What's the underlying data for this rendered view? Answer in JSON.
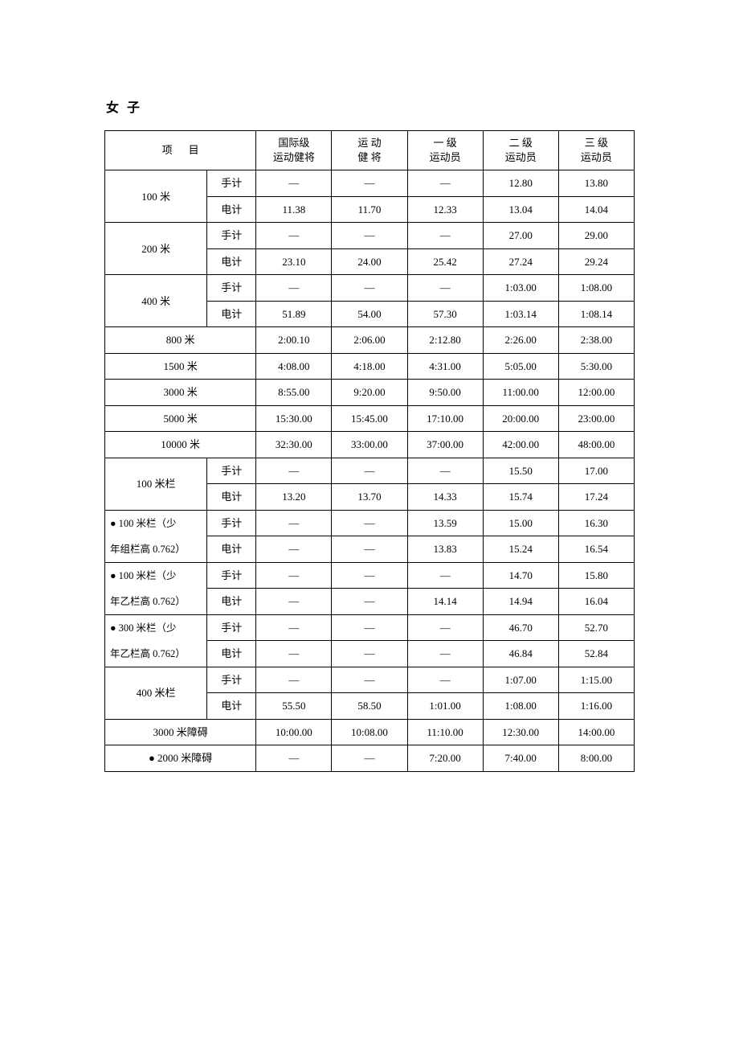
{
  "title": "女子",
  "headers": {
    "event": "项目",
    "col1_line1": "国际级",
    "col1_line2": "运动健将",
    "col2_line1": "运 动",
    "col2_line2": "健 将",
    "col3_line1": "一 级",
    "col3_line2": "运动员",
    "col4_line1": "二 级",
    "col4_line2": "运动员",
    "col5_line1": "三 级",
    "col5_line2": "运动员"
  },
  "timing": {
    "hand": "手计",
    "elec": "电计"
  },
  "events": {
    "e100m": {
      "name": "100 米",
      "hand": [
        "—",
        "—",
        "—",
        "12.80",
        "13.80"
      ],
      "elec": [
        "11.38",
        "11.70",
        "12.33",
        "13.04",
        "14.04"
      ]
    },
    "e200m": {
      "name": "200 米",
      "hand": [
        "—",
        "—",
        "—",
        "27.00",
        "29.00"
      ],
      "elec": [
        "23.10",
        "24.00",
        "25.42",
        "27.24",
        "29.24"
      ]
    },
    "e400m": {
      "name": "400 米",
      "hand": [
        "—",
        "—",
        "—",
        "1:03.00",
        "1:08.00"
      ],
      "elec": [
        "51.89",
        "54.00",
        "57.30",
        "1:03.14",
        "1:08.14"
      ]
    },
    "e800m": {
      "name": "800 米",
      "vals": [
        "2:00.10",
        "2:06.00",
        "2:12.80",
        "2:26.00",
        "2:38.00"
      ]
    },
    "e1500m": {
      "name": "1500 米",
      "vals": [
        "4:08.00",
        "4:18.00",
        "4:31.00",
        "5:05.00",
        "5:30.00"
      ]
    },
    "e3000m": {
      "name": "3000 米",
      "vals": [
        "8:55.00",
        "9:20.00",
        "9:50.00",
        "11:00.00",
        "12:00.00"
      ]
    },
    "e5000m": {
      "name": "5000 米",
      "vals": [
        "15:30.00",
        "15:45.00",
        "17:10.00",
        "20:00.00",
        "23:00.00"
      ]
    },
    "e10000m": {
      "name": "10000 米",
      "vals": [
        "32:30.00",
        "33:00.00",
        "37:00.00",
        "42:00.00",
        "48:00.00"
      ]
    },
    "e100mh": {
      "name": "100 米栏",
      "hand": [
        "—",
        "—",
        "—",
        "15.50",
        "17.00"
      ],
      "elec": [
        "13.20",
        "13.70",
        "14.33",
        "15.74",
        "17.24"
      ]
    },
    "e100mh_youth_group": {
      "name_l1": "● 100 米栏（少",
      "name_l2": "年组栏高 0.762）",
      "hand": [
        "—",
        "—",
        "13.59",
        "15.00",
        "16.30"
      ],
      "elec": [
        "—",
        "—",
        "13.83",
        "15.24",
        "16.54"
      ]
    },
    "e100mh_youth_b": {
      "name_l1": "● 100 米栏（少",
      "name_l2": "年乙栏高 0.762）",
      "hand": [
        "—",
        "—",
        "—",
        "14.70",
        "15.80"
      ],
      "elec": [
        "—",
        "—",
        "14.14",
        "14.94",
        "16.04"
      ]
    },
    "e300mh_youth_b": {
      "name_l1": "● 300 米栏（少",
      "name_l2": "年乙栏高 0.762）",
      "hand": [
        "—",
        "—",
        "—",
        "46.70",
        "52.70"
      ],
      "elec": [
        "—",
        "—",
        "—",
        "46.84",
        "52.84"
      ]
    },
    "e400mh": {
      "name": "400 米栏",
      "hand": [
        "—",
        "—",
        "—",
        "1:07.00",
        "1:15.00"
      ],
      "elec": [
        "55.50",
        "58.50",
        "1:01.00",
        "1:08.00",
        "1:16.00"
      ]
    },
    "e3000msc": {
      "name": "3000 米障碍",
      "vals": [
        "10:00.00",
        "10:08.00",
        "11:10.00",
        "12:30.00",
        "14:00.00"
      ]
    },
    "e2000msc": {
      "name": "● 2000 米障碍",
      "vals": [
        "—",
        "—",
        "7:20.00",
        "7:40.00",
        "8:00.00"
      ]
    }
  }
}
